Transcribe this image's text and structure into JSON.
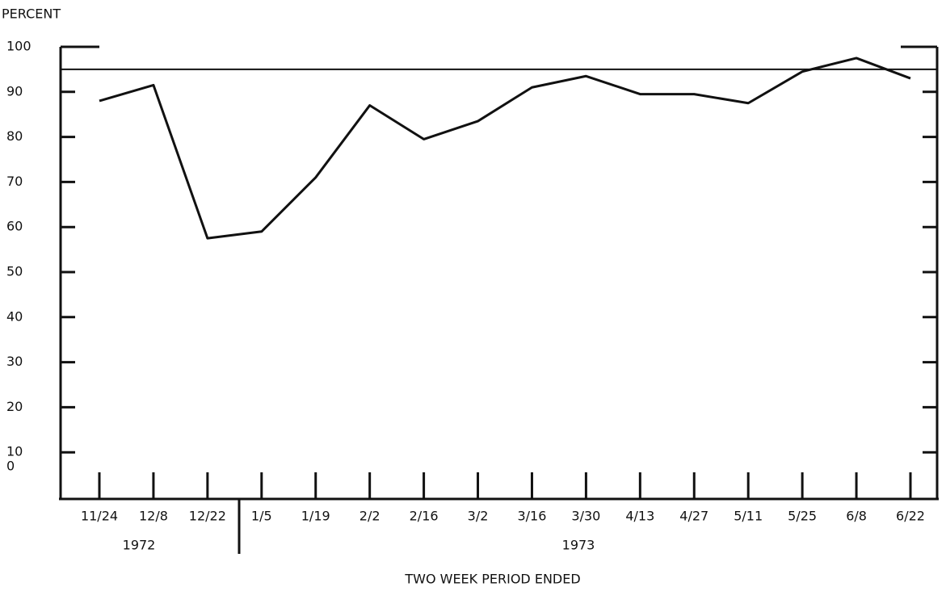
{
  "chart_data": {
    "type": "line",
    "y_axis_label": "PERCENT",
    "x_axis_label": "TWO WEEK PERIOD ENDED",
    "categories": [
      "11/24",
      "12/8",
      "12/22",
      "1/5",
      "1/19",
      "2/2",
      "2/16",
      "3/2",
      "3/16",
      "3/30",
      "4/13",
      "4/27",
      "5/11",
      "5/25",
      "6/8",
      "6/22"
    ],
    "years": [
      "1972",
      "1973"
    ],
    "series": [
      {
        "color": "#111111",
        "values": [
          88,
          91.5,
          57.5,
          59,
          71,
          87,
          79.5,
          83.5,
          91,
          93.5,
          89.5,
          89.5,
          87.5,
          94.5,
          97.5,
          93
        ]
      }
    ],
    "reference_line": 95,
    "ylim": [
      0,
      100
    ],
    "yticks": [
      0,
      10,
      20,
      30,
      40,
      50,
      60,
      70,
      80,
      90,
      100
    ]
  }
}
